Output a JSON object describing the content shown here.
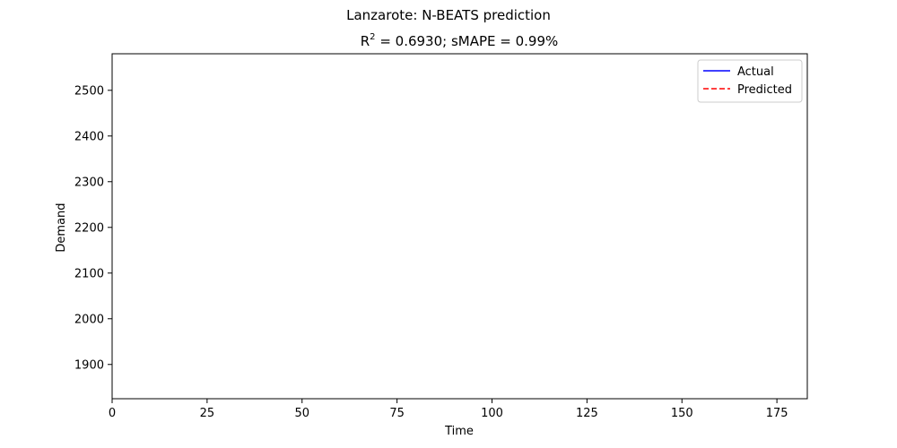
{
  "figure": {
    "suptitle": "Lanzarote: N-BEATS prediction",
    "subtitle_prefix": "R",
    "subtitle_sup": "2",
    "subtitle_suffix": " = 0.6930; sMAPE = 0.99%"
  },
  "chart_data": {
    "type": "line",
    "title": "R² = 0.6930; sMAPE = 0.99%",
    "xlabel": "Time",
    "ylabel": "Demand",
    "xlim": [
      0,
      183
    ],
    "ylim": [
      1825,
      2580
    ],
    "x_ticks": [
      0,
      25,
      50,
      75,
      100,
      125,
      150,
      175
    ],
    "y_ticks": [
      1900,
      2000,
      2100,
      2200,
      2300,
      2400,
      2500
    ],
    "grid": false,
    "legend_position": "top-right",
    "series": [
      {
        "name": "Actual",
        "color": "#0000ff",
        "style": "solid",
        "x": [],
        "y": []
      },
      {
        "name": "Predicted",
        "color": "#ff0000",
        "style": "dashed",
        "x": [],
        "y": []
      }
    ]
  }
}
